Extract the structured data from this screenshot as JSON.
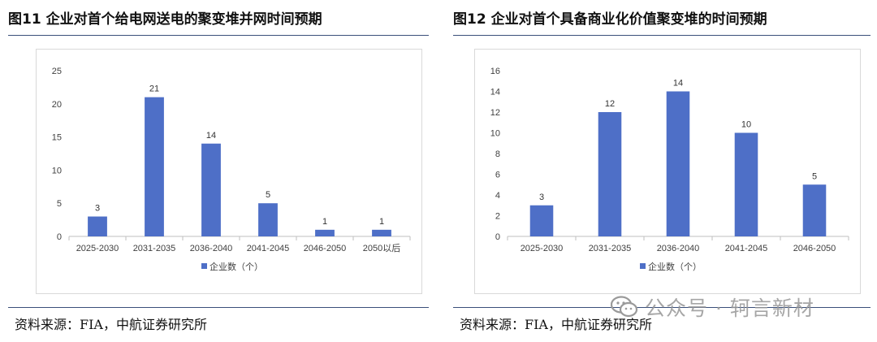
{
  "figures": [
    {
      "title": "图11 企业对首个给电网送电的聚变堆并网时间预期",
      "source": "资料来源：FIA，中航证券研究所",
      "chart_data": {
        "type": "bar",
        "categories": [
          "2025-2030",
          "2031-2035",
          "2036-2040",
          "2041-2045",
          "2046-2050",
          "2050以后"
        ],
        "series": [
          {
            "name": "企业数（个）",
            "values": [
              3,
              21,
              14,
              5,
              1,
              1
            ],
            "color": "#4e6fc7"
          }
        ],
        "ylim": [
          0,
          25
        ],
        "yticks": [
          0,
          5,
          10,
          15,
          20,
          25
        ],
        "grid": false,
        "legend": "bottom",
        "data_labels": true,
        "xlabel": "",
        "ylabel": ""
      }
    },
    {
      "title": "图12 企业对首个具备商业化价值聚变堆的时间预期",
      "source": "资料来源：FIA，中航证券研究所",
      "chart_data": {
        "type": "bar",
        "categories": [
          "2025-2030",
          "2031-2035",
          "2036-2040",
          "2041-2045",
          "2046-2050"
        ],
        "series": [
          {
            "name": "企业数（个）",
            "values": [
              3,
              12,
              14,
              10,
              5
            ],
            "color": "#4e6fc7"
          }
        ],
        "ylim": [
          0,
          16
        ],
        "yticks": [
          0,
          2,
          4,
          6,
          8,
          10,
          12,
          14,
          16
        ],
        "grid": false,
        "legend": "bottom",
        "data_labels": true,
        "xlabel": "",
        "ylabel": ""
      }
    }
  ],
  "watermark": {
    "text": "公众号 · 轲言新材",
    "icon": "wechat-icon"
  }
}
